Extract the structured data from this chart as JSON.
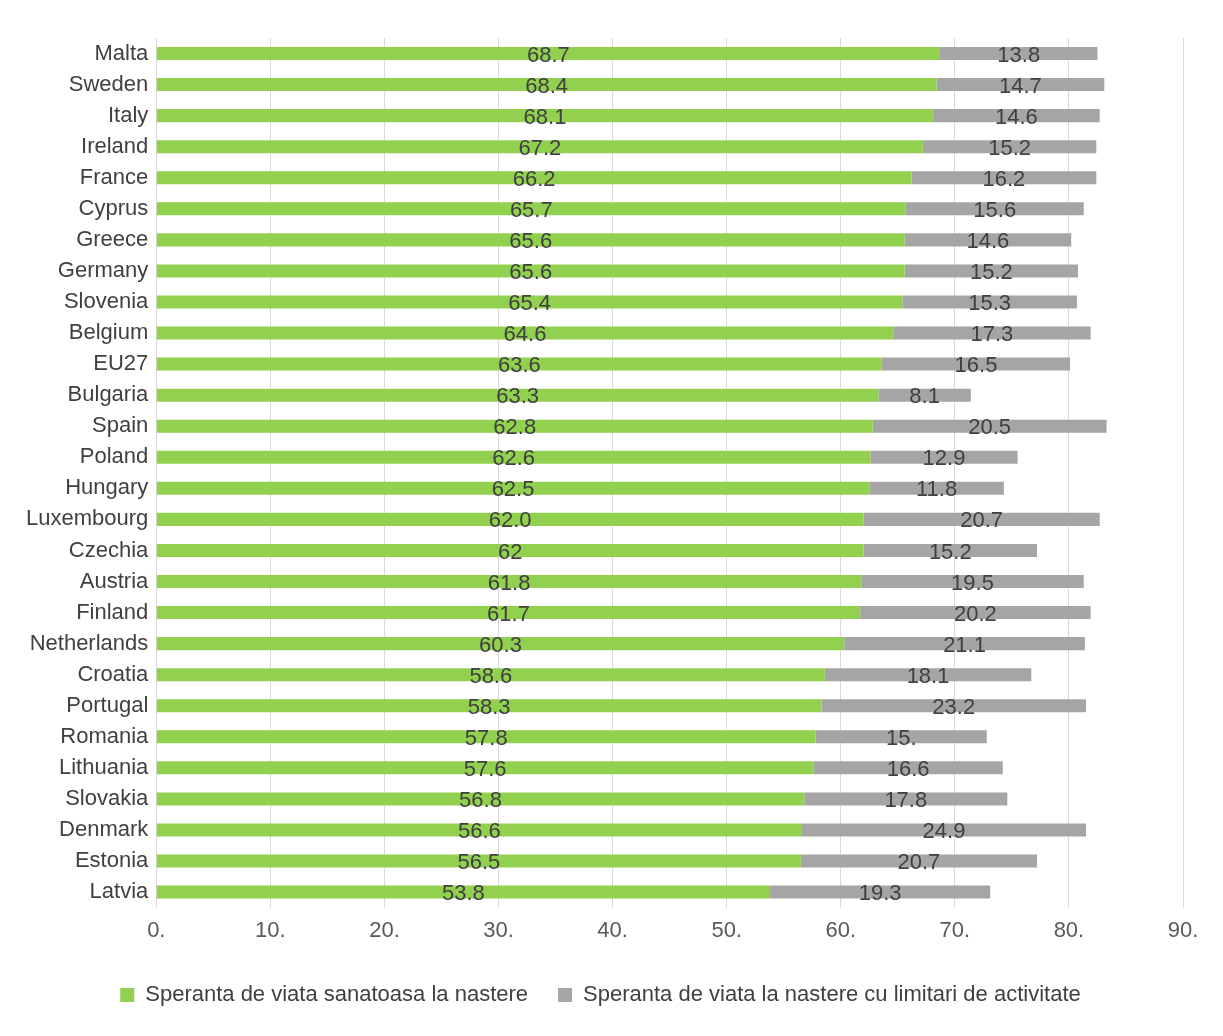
{
  "chart_data": {
    "type": "bar",
    "orientation": "horizontal",
    "stacked": true,
    "categories": [
      "Malta",
      "Sweden",
      "Italy",
      "Ireland",
      "France",
      "Cyprus",
      "Greece",
      "Germany",
      "Slovenia",
      "Belgium",
      "EU27",
      "Bulgaria",
      "Spain",
      "Poland",
      "Hungary",
      "Luxembourg",
      "Czechia",
      "Austria",
      "Finland",
      "Netherlands",
      "Croatia",
      "Portugal",
      "Romania",
      "Lithuania",
      "Slovakia",
      "Denmark",
      "Estonia",
      "Latvia"
    ],
    "series": [
      {
        "name": "Speranta de viata sanatoasa la nastere",
        "color": "#92d050",
        "values": [
          68.7,
          68.4,
          68.1,
          67.2,
          66.2,
          65.7,
          65.6,
          65.6,
          65.4,
          64.6,
          63.6,
          63.3,
          62.8,
          62.6,
          62.5,
          62.0,
          62,
          61.8,
          61.7,
          60.3,
          58.6,
          58.3,
          57.8,
          57.6,
          56.8,
          56.6,
          56.5,
          53.8
        ],
        "value_labels": [
          "68.7",
          "68.4",
          "68.1",
          "67.2",
          "66.2",
          "65.7",
          "65.6",
          "65.6",
          "65.4",
          "64.6",
          "63.6",
          "63.3",
          "62.8",
          "62.6",
          "62.5",
          "62.0",
          "62",
          "61.8",
          "61.7",
          "60.3",
          "58.6",
          "58.3",
          "57.8",
          "57.6",
          "56.8",
          "56.6",
          "56.5",
          "53.8"
        ]
      },
      {
        "name": "Speranta de viata la nastere cu limitari de activitate",
        "color": "#a5a5a5",
        "values": [
          13.8,
          14.7,
          14.6,
          15.2,
          16.2,
          15.6,
          14.6,
          15.2,
          15.3,
          17.3,
          16.5,
          8.1,
          20.5,
          12.9,
          11.8,
          20.7,
          15.2,
          19.5,
          20.2,
          21.1,
          18.1,
          23.2,
          15,
          16.6,
          17.8,
          24.9,
          20.7,
          19.3
        ],
        "value_labels": [
          "13.8",
          "14.7",
          "14.6",
          "15.2",
          "16.2",
          "15.6",
          "14.6",
          "15.2",
          "15.3",
          "17.3",
          "16.5",
          "8.1",
          "20.5",
          "12.9",
          "11.8",
          "20.7",
          "15.2",
          "19.5",
          "20.2",
          "21.1",
          "18.1",
          "23.2",
          "15.",
          "16.6",
          "17.8",
          "24.9",
          "20.7",
          "19.3"
        ]
      }
    ],
    "xlim": [
      0,
      90
    ],
    "xticks": [
      {
        "value": 0,
        "label": "0."
      },
      {
        "value": 10,
        "label": "10."
      },
      {
        "value": 20,
        "label": "20."
      },
      {
        "value": 30,
        "label": "30."
      },
      {
        "value": 40,
        "label": "40."
      },
      {
        "value": 50,
        "label": "50."
      },
      {
        "value": 60,
        "label": "60."
      },
      {
        "value": 70,
        "label": "70."
      },
      {
        "value": 80,
        "label": "80."
      },
      {
        "value": 90,
        "label": "90."
      }
    ],
    "grid": "x",
    "legend": "bottom"
  }
}
